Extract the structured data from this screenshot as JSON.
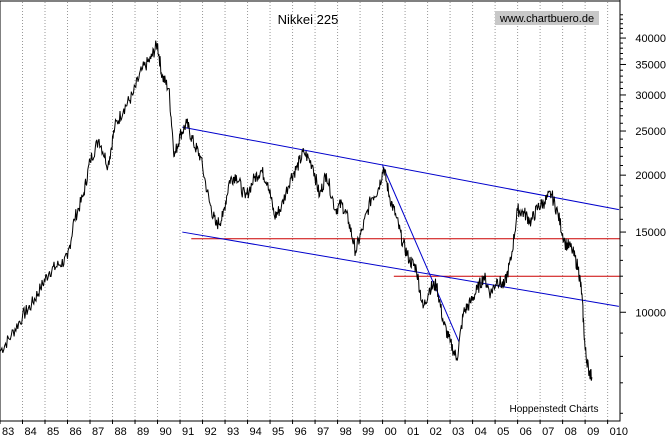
{
  "chart_data": {
    "type": "line",
    "title": "Nikkei 225",
    "source": "www.chartbuero.de",
    "credit": "Hoppenstedt Charts",
    "y_scale": "log",
    "ylim": [
      5800,
      48000
    ],
    "xlim": [
      1983.0,
      2010.55
    ],
    "y_ticks": [
      10000,
      15000,
      20000,
      25000,
      30000,
      35000,
      40000
    ],
    "x_tick_labels": [
      "83",
      "84",
      "85",
      "86",
      "87",
      "88",
      "89",
      "90",
      "91",
      "92",
      "93",
      "94",
      "95",
      "96",
      "97",
      "98",
      "99",
      "00",
      "01",
      "02",
      "03",
      "04",
      "05",
      "06",
      "07",
      "08",
      "09",
      "010"
    ],
    "x_tick_years": [
      1983,
      1984,
      1985,
      1986,
      1987,
      1988,
      1989,
      1990,
      1991,
      1992,
      1993,
      1994,
      1995,
      1996,
      1997,
      1998,
      1999,
      2000,
      2001,
      2002,
      2003,
      2004,
      2005,
      2006,
      2007,
      2008,
      2009,
      2010
    ],
    "grid": true,
    "colors": {
      "price": "#000000",
      "trend": "#0000cc",
      "support": "#cc0000",
      "grid": "#999999"
    },
    "series": [
      {
        "values_x": [
          1983.0,
          1983.5,
          1984.0,
          1984.4,
          1984.8,
          1985.2,
          1985.6,
          1986.0,
          1986.3,
          1986.7,
          1987.0,
          1987.4,
          1987.8,
          1988.1,
          1988.5,
          1988.9,
          1989.3,
          1989.7,
          1989.99,
          1990.2,
          1990.5,
          1990.75,
          1991.0,
          1991.3,
          1991.6,
          1991.9,
          1992.3,
          1992.6,
          1992.9,
          1993.2,
          1993.5,
          1993.9,
          1994.3,
          1994.6,
          1994.9,
          1995.2,
          1995.5,
          1995.9,
          1996.2,
          1996.5,
          1996.9,
          1997.2,
          1997.5,
          1997.9,
          1998.2,
          1998.5,
          1998.8,
          1999.1,
          1999.5,
          1999.8,
          2000.05,
          2000.3,
          2000.6,
          2000.9,
          2001.2,
          2001.5,
          2001.8,
          2002.1,
          2002.4,
          2002.7,
          2003.0,
          2003.3,
          2003.6,
          2003.9,
          2004.2,
          2004.5,
          2004.8,
          2005.1,
          2005.4,
          2005.7,
          2006.0,
          2006.3,
          2006.6,
          2006.9,
          2007.2,
          2007.5,
          2007.8,
          2008.1,
          2008.4,
          2008.7,
          2008.85,
          2009.0,
          2009.15,
          2009.3
        ],
        "values_y": [
          8200,
          8900,
          9800,
          10400,
          11300,
          12300,
          12700,
          13100,
          16000,
          18000,
          21500,
          24000,
          21000,
          25500,
          28000,
          30000,
          34000,
          36000,
          38900,
          33000,
          31000,
          22000,
          24500,
          26000,
          23500,
          22000,
          17500,
          15500,
          16200,
          19500,
          20000,
          17800,
          19700,
          20500,
          19300,
          16200,
          17000,
          19700,
          20800,
          22500,
          21000,
          18000,
          20200,
          16800,
          17300,
          15800,
          13600,
          15200,
          17800,
          18600,
          20800,
          18000,
          16200,
          14200,
          13000,
          12500,
          10200,
          11300,
          11500,
          9500,
          8600,
          7900,
          10000,
          10500,
          11200,
          12000,
          11000,
          11800,
          11400,
          13000,
          16800,
          16500,
          15800,
          17000,
          17500,
          18200,
          16400,
          14200,
          13800,
          12500,
          11000,
          8300,
          7500,
          7200
        ]
      }
    ],
    "trend_lines": [
      {
        "name": "upper-channel",
        "from": [
          1991.1,
          25500
        ],
        "to": [
          2010.5,
          16800
        ]
      },
      {
        "name": "lower-channel",
        "from": [
          1991.1,
          15000
        ],
        "to": [
          2010.5,
          10300
        ]
      },
      {
        "name": "steep-down",
        "from": [
          2000.0,
          21000
        ],
        "to": [
          2003.4,
          8600
        ]
      }
    ],
    "horizontal_lines": [
      {
        "name": "support-14500",
        "value": 14500,
        "from": 1991.5,
        "to": 2010.55
      },
      {
        "name": "support-12000",
        "value": 12000,
        "from": 2000.5,
        "to": 2010.55
      }
    ]
  }
}
